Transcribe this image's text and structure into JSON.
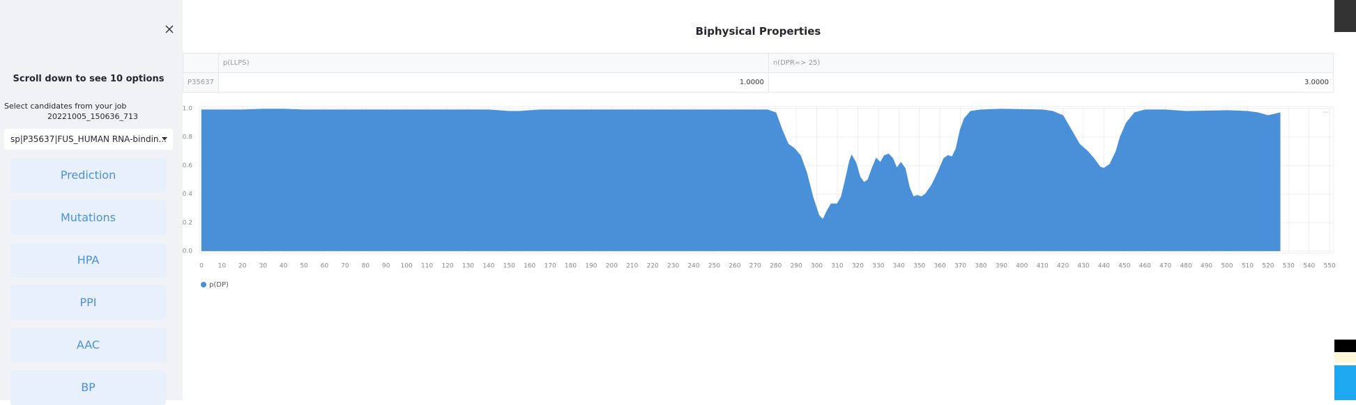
{
  "sidebar": {
    "hint": "Scroll down to see 10 options",
    "select_label": "Select candidates from your job",
    "job_id": "20221005_150636_713",
    "selected": "sp|P35637|FUS_HUMAN RNA-bindin...",
    "buttons": [
      "Prediction",
      "Mutations",
      "HPA",
      "PPI",
      "AAC",
      "BP"
    ]
  },
  "page_title": "Biphysical Properties",
  "table": {
    "header": [
      "p(LLPS)",
      "n(DPR=> 25)"
    ],
    "rows": [
      [
        "P35637",
        "1.0000",
        "3.0000"
      ]
    ]
  },
  "chart_data": {
    "type": "area",
    "x": [
      0,
      10,
      20,
      30,
      40,
      50,
      60,
      70,
      80,
      90,
      100,
      110,
      120,
      130,
      140,
      145,
      150,
      155,
      160,
      165,
      170,
      180,
      190,
      200,
      210,
      220,
      230,
      240,
      250,
      260,
      270,
      276,
      280,
      283,
      286,
      289,
      292,
      295,
      298,
      301,
      303,
      305,
      307,
      310,
      312,
      314,
      316,
      317,
      319,
      321,
      323,
      325,
      327,
      329,
      331,
      333,
      335,
      337,
      339,
      341,
      343,
      345,
      347,
      349,
      351,
      353,
      356,
      359,
      362,
      364,
      366,
      368,
      370,
      372,
      375,
      380,
      390,
      410,
      415,
      420,
      424,
      428,
      432,
      435,
      438,
      440,
      443,
      446,
      448,
      451,
      455,
      460,
      470,
      480,
      500,
      510,
      515,
      520,
      523,
      526
    ],
    "series": [
      {
        "name": "p(DP)",
        "color": "#4a90d9",
        "values": [
          0.99,
          0.99,
          0.99,
          0.995,
          0.995,
          0.99,
          0.99,
          0.99,
          0.99,
          0.99,
          0.99,
          0.99,
          0.99,
          0.99,
          0.99,
          0.985,
          0.98,
          0.98,
          0.985,
          0.99,
          0.99,
          0.99,
          0.99,
          0.99,
          0.99,
          0.99,
          0.99,
          0.99,
          0.99,
          0.99,
          0.99,
          0.99,
          0.97,
          0.85,
          0.75,
          0.72,
          0.67,
          0.55,
          0.38,
          0.25,
          0.22,
          0.28,
          0.33,
          0.33,
          0.38,
          0.5,
          0.63,
          0.67,
          0.62,
          0.52,
          0.48,
          0.5,
          0.58,
          0.65,
          0.62,
          0.67,
          0.68,
          0.65,
          0.58,
          0.62,
          0.58,
          0.45,
          0.38,
          0.39,
          0.38,
          0.4,
          0.46,
          0.55,
          0.65,
          0.67,
          0.66,
          0.72,
          0.85,
          0.93,
          0.98,
          0.99,
          0.995,
          0.99,
          0.98,
          0.95,
          0.85,
          0.75,
          0.7,
          0.65,
          0.59,
          0.58,
          0.61,
          0.7,
          0.8,
          0.9,
          0.97,
          0.99,
          0.99,
          0.98,
          0.985,
          0.98,
          0.97,
          0.95,
          0.96,
          0.97
        ]
      }
    ],
    "xlim": [
      -1,
      552
    ],
    "xticks": [
      0,
      10,
      20,
      30,
      40,
      50,
      60,
      70,
      80,
      90,
      100,
      110,
      120,
      130,
      140,
      150,
      160,
      170,
      180,
      190,
      200,
      210,
      220,
      230,
      240,
      250,
      260,
      270,
      280,
      290,
      300,
      310,
      320,
      330,
      340,
      350,
      360,
      370,
      380,
      390,
      400,
      410,
      420,
      430,
      440,
      450,
      460,
      470,
      480,
      490,
      500,
      510,
      520,
      530,
      540,
      550
    ],
    "ylim": [
      -0.015,
      1.015
    ],
    "yticks": [
      {
        "value": 0,
        "label": "0.0"
      },
      0.2,
      0.4,
      0.6,
      0.8,
      {
        "value": 1,
        "label": "1.0"
      }
    ],
    "grid": true
  }
}
